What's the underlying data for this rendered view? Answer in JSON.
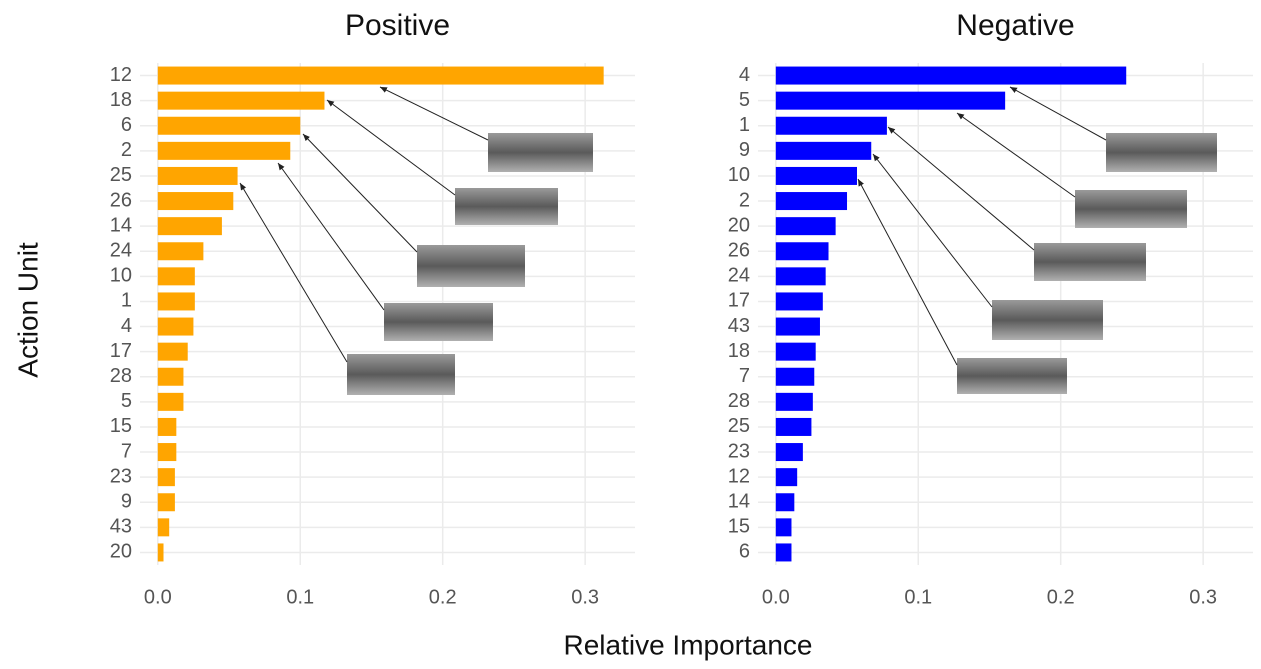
{
  "x_label": "Relative Importance",
  "y_label": "Action Unit",
  "chart_data": [
    {
      "type": "bar",
      "orientation": "horizontal",
      "title": "Positive",
      "color": "#ffa500",
      "categories": [
        "12",
        "18",
        "6",
        "2",
        "25",
        "26",
        "14",
        "24",
        "10",
        "1",
        "4",
        "17",
        "28",
        "5",
        "15",
        "7",
        "23",
        "9",
        "43",
        "20"
      ],
      "values": [
        0.313,
        0.117,
        0.1,
        0.093,
        0.056,
        0.053,
        0.045,
        0.032,
        0.026,
        0.026,
        0.025,
        0.021,
        0.018,
        0.018,
        0.013,
        0.013,
        0.012,
        0.012,
        0.008,
        0.004
      ],
      "xlim": [
        -0.0125,
        0.335
      ],
      "xticks": [
        {
          "value": 0,
          "label": "0.0"
        },
        0.1,
        0.2,
        0.3
      ],
      "grid": true
    },
    {
      "type": "bar",
      "orientation": "horizontal",
      "title": "Negative",
      "color": "#0000ff",
      "categories": [
        "4",
        "5",
        "1",
        "9",
        "10",
        "2",
        "20",
        "26",
        "24",
        "17",
        "43",
        "18",
        "7",
        "28",
        "25",
        "23",
        "12",
        "14",
        "15",
        "6"
      ],
      "values": [
        0.246,
        0.161,
        0.078,
        0.067,
        0.057,
        0.05,
        0.042,
        0.037,
        0.035,
        0.033,
        0.031,
        0.028,
        0.027,
        0.026,
        0.025,
        0.019,
        0.015,
        0.013,
        0.011,
        0.011
      ],
      "xlim": [
        -0.0125,
        0.335
      ],
      "xticks": [
        {
          "value": 0,
          "label": "0.0"
        },
        0.1,
        0.2,
        0.3
      ],
      "grid": true
    }
  ]
}
